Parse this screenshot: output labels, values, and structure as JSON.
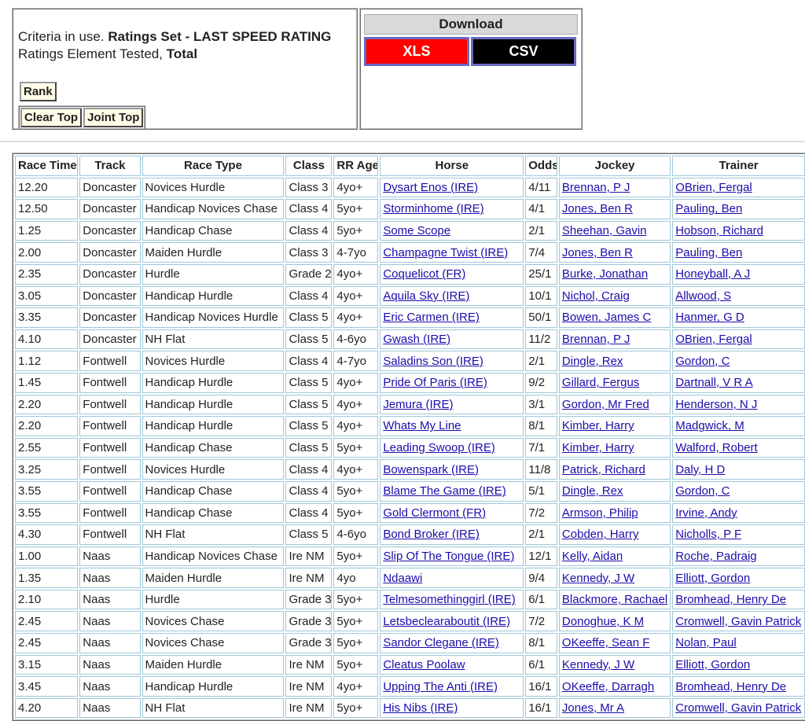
{
  "criteria": {
    "prefix": "Criteria in use.",
    "ratings_set": "Ratings Set - LAST SPEED RATING",
    "element_label": "Ratings Element Tested,",
    "element": "Total"
  },
  "buttons": {
    "rank": "Rank",
    "clear_top": "Clear Top",
    "joint_top": "Joint Top"
  },
  "download": {
    "title": "Download",
    "xls": "XLS",
    "csv": "CSV"
  },
  "table": {
    "headers": [
      "Race Time",
      "Track",
      "Race Type",
      "Class",
      "RR Age",
      "Horse",
      "Odds",
      "Jockey",
      "Trainer"
    ],
    "rows": [
      [
        "12.20",
        "Doncaster",
        "Novices Hurdle",
        "Class 3",
        "4yo+",
        "Dysart Enos (IRE)",
        "4/11",
        "Brennan, P J",
        "OBrien, Fergal"
      ],
      [
        "12.50",
        "Doncaster",
        "Handicap Novices Chase",
        "Class 4",
        "5yo+",
        "Storminhome (IRE)",
        "4/1",
        "Jones, Ben R",
        "Pauling, Ben"
      ],
      [
        "1.25",
        "Doncaster",
        "Handicap Chase",
        "Class 4",
        "5yo+",
        "Some Scope",
        "2/1",
        "Sheehan, Gavin",
        "Hobson, Richard"
      ],
      [
        "2.00",
        "Doncaster",
        "Maiden Hurdle",
        "Class 3",
        "4-7yo",
        "Champagne Twist (IRE)",
        "7/4",
        "Jones, Ben R",
        "Pauling, Ben"
      ],
      [
        "2.35",
        "Doncaster",
        "Hurdle",
        "Grade 2",
        "4yo+",
        "Coquelicot (FR)",
        "25/1",
        "Burke, Jonathan",
        "Honeyball, A J"
      ],
      [
        "3.05",
        "Doncaster",
        "Handicap Hurdle",
        "Class 4",
        "4yo+",
        "Aquila Sky (IRE)",
        "10/1",
        "Nichol, Craig",
        "Allwood, S"
      ],
      [
        "3.35",
        "Doncaster",
        "Handicap Novices Hurdle",
        "Class 5",
        "4yo+",
        "Eric Carmen (IRE)",
        "50/1",
        "Bowen, James C",
        "Hanmer, G D"
      ],
      [
        "4.10",
        "Doncaster",
        "NH Flat",
        "Class 5",
        "4-6yo",
        "Gwash (IRE)",
        "11/2",
        "Brennan, P J",
        "OBrien, Fergal"
      ],
      [
        "1.12",
        "Fontwell",
        "Novices Hurdle",
        "Class 4",
        "4-7yo",
        "Saladins Son (IRE)",
        "2/1",
        "Dingle, Rex",
        "Gordon, C"
      ],
      [
        "1.45",
        "Fontwell",
        "Handicap Hurdle",
        "Class 5",
        "4yo+",
        "Pride Of Paris (IRE)",
        "9/2",
        "Gillard, Fergus",
        "Dartnall, V R A"
      ],
      [
        "2.20",
        "Fontwell",
        "Handicap Hurdle",
        "Class 5",
        "4yo+",
        "Jemura (IRE)",
        "3/1",
        "Gordon, Mr Fred",
        "Henderson, N J"
      ],
      [
        "2.20",
        "Fontwell",
        "Handicap Hurdle",
        "Class 5",
        "4yo+",
        "Whats My Line",
        "8/1",
        "Kimber, Harry",
        "Madgwick, M"
      ],
      [
        "2.55",
        "Fontwell",
        "Handicap Chase",
        "Class 5",
        "5yo+",
        "Leading Swoop (IRE)",
        "7/1",
        "Kimber, Harry",
        "Walford, Robert"
      ],
      [
        "3.25",
        "Fontwell",
        "Novices Hurdle",
        "Class 4",
        "4yo+",
        "Bowenspark (IRE)",
        "11/8",
        "Patrick, Richard",
        "Daly, H D"
      ],
      [
        "3.55",
        "Fontwell",
        "Handicap Chase",
        "Class 4",
        "5yo+",
        "Blame The Game (IRE)",
        "5/1",
        "Dingle, Rex",
        "Gordon, C"
      ],
      [
        "3.55",
        "Fontwell",
        "Handicap Chase",
        "Class 4",
        "5yo+",
        "Gold Clermont (FR)",
        "7/2",
        "Armson, Philip",
        "Irvine, Andy"
      ],
      [
        "4.30",
        "Fontwell",
        "NH Flat",
        "Class 5",
        "4-6yo",
        "Bond Broker (IRE)",
        "2/1",
        "Cobden, Harry",
        "Nicholls, P F"
      ],
      [
        "1.00",
        "Naas",
        "Handicap Novices Chase",
        "Ire NM",
        "5yo+",
        "Slip Of The Tongue (IRE)",
        "12/1",
        "Kelly, Aidan",
        "Roche, Padraig"
      ],
      [
        "1.35",
        "Naas",
        "Maiden Hurdle",
        "Ire NM",
        "4yo",
        "Ndaawi",
        "9/4",
        "Kennedy, J W",
        "Elliott, Gordon"
      ],
      [
        "2.10",
        "Naas",
        "Hurdle",
        "Grade 3",
        "5yo+",
        "Telmesomethinggirl (IRE)",
        "6/1",
        "Blackmore, Rachael",
        "Bromhead, Henry De"
      ],
      [
        "2.45",
        "Naas",
        "Novices Chase",
        "Grade 3",
        "5yo+",
        "Letsbeclearaboutit (IRE)",
        "7/2",
        "Donoghue, K M",
        "Cromwell, Gavin Patrick"
      ],
      [
        "2.45",
        "Naas",
        "Novices Chase",
        "Grade 3",
        "5yo+",
        "Sandor Clegane (IRE)",
        "8/1",
        "OKeeffe, Sean F",
        "Nolan, Paul"
      ],
      [
        "3.15",
        "Naas",
        "Maiden Hurdle",
        "Ire NM",
        "5yo+",
        "Cleatus Poolaw",
        "6/1",
        "Kennedy, J W",
        "Elliott, Gordon"
      ],
      [
        "3.45",
        "Naas",
        "Handicap Hurdle",
        "Ire NM",
        "4yo+",
        "Upping The Anti (IRE)",
        "16/1",
        "OKeeffe, Darragh",
        "Bromhead, Henry De"
      ],
      [
        "4.20",
        "Naas",
        "NH Flat",
        "Ire NM",
        "5yo+",
        "His Nibs (IRE)",
        "16/1",
        "Jones, Mr A",
        "Cromwell, Gavin Patrick"
      ]
    ]
  }
}
